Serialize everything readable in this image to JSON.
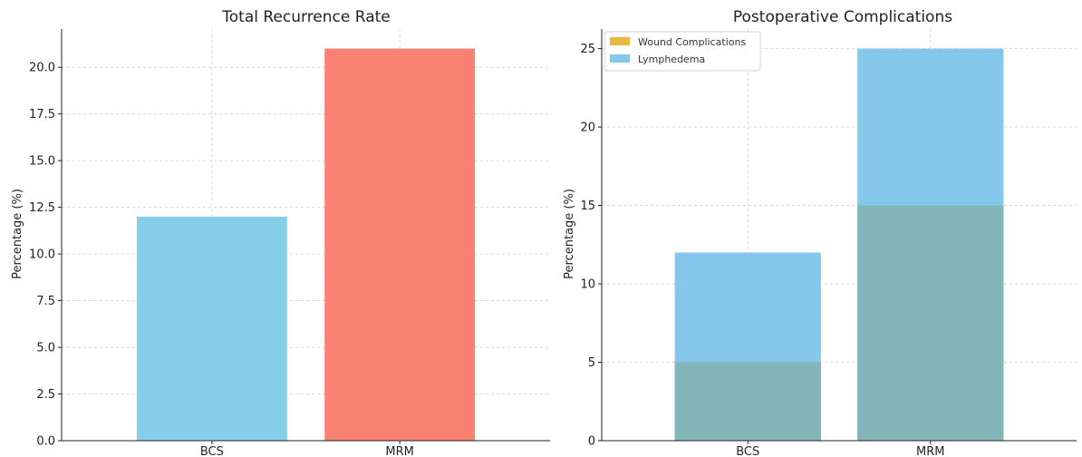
{
  "chart_data": [
    {
      "type": "bar",
      "title": "Total Recurrence Rate",
      "xlabel": "",
      "ylabel": "Percentage (%)",
      "categories": [
        "BCS",
        "MRM"
      ],
      "values": [
        12,
        21
      ],
      "colors": [
        "#87ceeb",
        "#fa8072"
      ],
      "ylim": [
        0,
        22.05
      ],
      "yticks": [
        0.0,
        2.5,
        5.0,
        7.5,
        10.0,
        12.5,
        15.0,
        17.5,
        20.0
      ],
      "ytick_labels": [
        "0.0",
        "2.5",
        "5.0",
        "7.5",
        "10.0",
        "12.5",
        "15.0",
        "17.5",
        "20.0"
      ],
      "grid": true
    },
    {
      "type": "bar",
      "title": "Postoperative Complications",
      "xlabel": "",
      "ylabel": "Percentage (%)",
      "categories": [
        "BCS",
        "MRM"
      ],
      "series": [
        {
          "name": "Wound Complications",
          "values": [
            5,
            15
          ],
          "color": "#e8b840"
        },
        {
          "name": "Lymphedema",
          "values": [
            12,
            25
          ],
          "color": "#86c8ec"
        }
      ],
      "overlap_color": "#83b5b9",
      "ylim": [
        0,
        26.25
      ],
      "yticks": [
        0,
        5,
        10,
        15,
        20,
        25
      ],
      "ytick_labels": [
        "0",
        "5",
        "10",
        "15",
        "20",
        "25"
      ],
      "legend_position": "top-left",
      "grid": true
    }
  ]
}
